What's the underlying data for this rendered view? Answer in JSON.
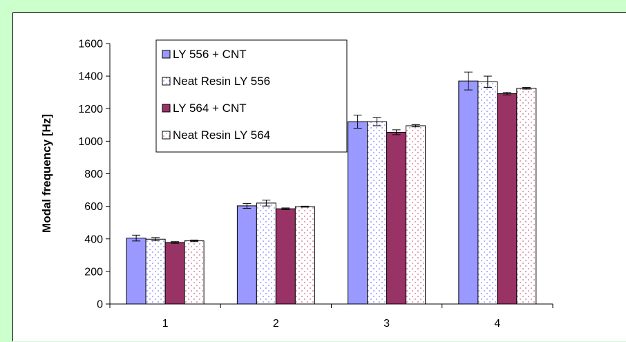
{
  "chart_data": {
    "type": "bar",
    "categories": [
      "1",
      "2",
      "3",
      "4"
    ],
    "ylabel": "Modal frequency [Hz]",
    "xlabel": "",
    "ylim": [
      0,
      1600
    ],
    "yticks": [
      "0",
      "200",
      "400",
      "600",
      "800",
      "1000",
      "1200",
      "1400",
      "1600"
    ],
    "legend_position": "top-left",
    "grid": false,
    "series": [
      {
        "name": "LY 556 + CNT",
        "values": [
          405,
          603,
          1120,
          1370
        ],
        "errors": [
          18,
          15,
          40,
          55
        ],
        "color": "#9999ff",
        "pattern": "solid"
      },
      {
        "name": "Neat Resin LY 556",
        "values": [
          398,
          620,
          1120,
          1365
        ],
        "errors": [
          10,
          18,
          25,
          35
        ],
        "color": "#ffffff",
        "pattern": "dots-blue"
      },
      {
        "name": "LY 564 + CNT",
        "values": [
          378,
          585,
          1055,
          1292
        ],
        "errors": [
          5,
          5,
          15,
          8
        ],
        "color": "#993366",
        "pattern": "solid"
      },
      {
        "name": "Neat Resin LY 564",
        "values": [
          388,
          598,
          1095,
          1325
        ],
        "errors": [
          5,
          3,
          7,
          5
        ],
        "color": "#ffffff",
        "pattern": "dots-red"
      }
    ]
  }
}
